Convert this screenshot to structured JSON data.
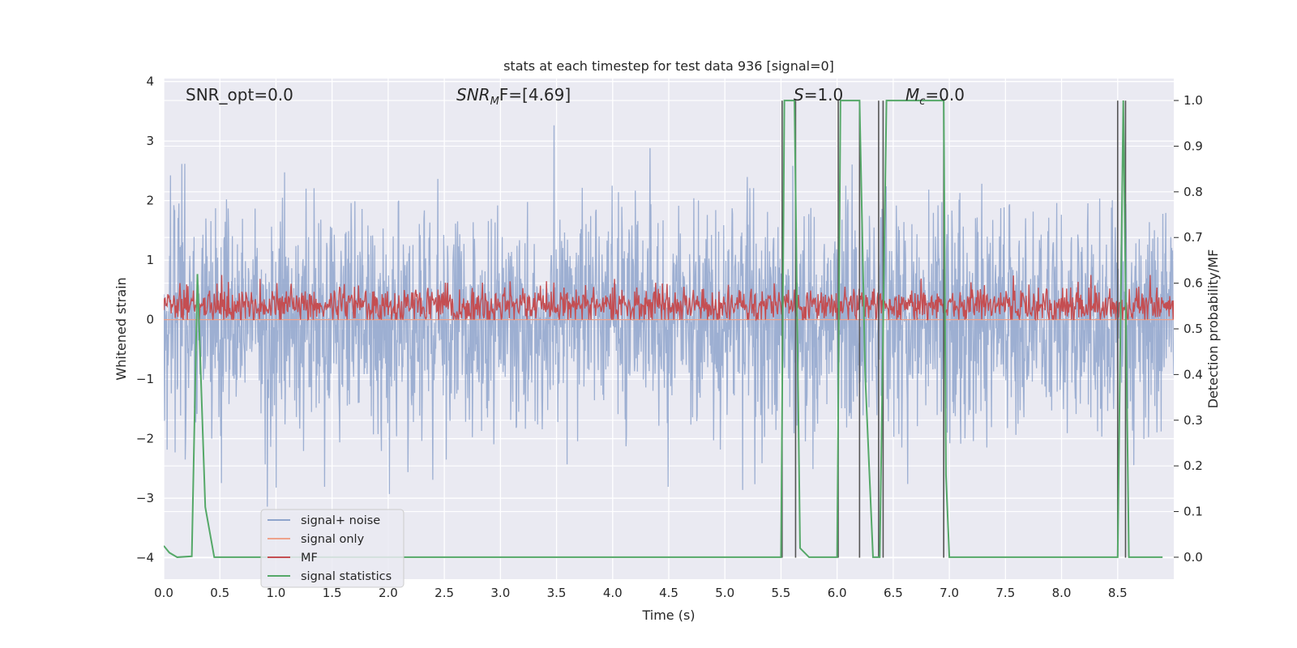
{
  "chart_data": {
    "type": "line",
    "title": "stats at each timestep for test data 936 [signal=0]",
    "xlabel": "Time (s)",
    "ylabel_left": "Whitened strain",
    "ylabel_right": "Detection probability/MF",
    "xlim": [
      0.0,
      9.0
    ],
    "ylim_left": [
      -4.36,
      4.05
    ],
    "ylim_right": [
      -0.048,
      1.048
    ],
    "x_ticks": [
      "0.0",
      "0.5",
      "1.0",
      "1.5",
      "2.0",
      "2.5",
      "3.0",
      "3.5",
      "4.0",
      "4.5",
      "5.0",
      "5.5",
      "6.0",
      "6.5",
      "7.0",
      "7.5",
      "8.0",
      "8.5"
    ],
    "x_tick_values": [
      0.0,
      0.5,
      1.0,
      1.5,
      2.0,
      2.5,
      3.0,
      3.5,
      4.0,
      4.5,
      5.0,
      5.5,
      6.0,
      6.5,
      7.0,
      7.5,
      8.0,
      8.5
    ],
    "y_ticks_left": [
      "−4",
      "−3",
      "−2",
      "−1",
      "0",
      "1",
      "2",
      "3",
      "4"
    ],
    "y_tick_values_left": [
      -4,
      -3,
      -2,
      -1,
      0,
      1,
      2,
      3,
      4
    ],
    "y_ticks_right": [
      "0.0",
      "0.1",
      "0.2",
      "0.3",
      "0.4",
      "0.5",
      "0.6",
      "0.7",
      "0.8",
      "0.9",
      "1.0"
    ],
    "y_tick_values_right": [
      0.0,
      0.1,
      0.2,
      0.3,
      0.4,
      0.5,
      0.6,
      0.7,
      0.8,
      0.9,
      1.0
    ],
    "grid": true,
    "legend_position": "lower-left",
    "annotations": {
      "snr_opt": "SNR_opt=0.0",
      "snr_mf_main": "SNR",
      "snr_mf_sub": "M",
      "snr_mf_rest": "F=[4.69]",
      "s_main": "S",
      "s_rest": "=1.0",
      "mc_main": "M",
      "mc_sub": "c",
      "mc_rest": "=0.0"
    },
    "series": [
      {
        "name": "signal+ noise",
        "color": "#8fa5cc",
        "axis": "left",
        "style": "noise",
        "sigma": 0.95,
        "envelope_max": 3.5,
        "envelope_min": -4.1
      },
      {
        "name": "signal only",
        "color": "#eea28b",
        "axis": "left",
        "values_constant": 0.0
      },
      {
        "name": "MF",
        "color": "#c44e52",
        "axis": "left",
        "style": "noise",
        "mean": 0.25,
        "band": [
          0.0,
          0.75
        ]
      },
      {
        "name": "signal statistics",
        "color": "#55a868",
        "axis": "right",
        "x": [
          0.0,
          0.05,
          0.12,
          0.25,
          0.3,
          0.37,
          0.45,
          2.0,
          5.5,
          5.53,
          5.62,
          5.67,
          5.75,
          6.0,
          6.03,
          6.1,
          6.2,
          6.25,
          6.32,
          6.38,
          6.44,
          6.5,
          6.95,
          6.97,
          7.0,
          8.5,
          8.55,
          8.6,
          8.9
        ],
        "y": [
          0.025,
          0.01,
          0.0,
          0.002,
          0.62,
          0.11,
          0.0,
          0.0,
          0.0,
          1.0,
          1.0,
          0.02,
          0.0,
          0.0,
          1.0,
          1.0,
          1.0,
          0.4,
          0.0,
          0.0,
          1.0,
          1.0,
          1.0,
          0.18,
          0.0,
          0.0,
          1.0,
          0.0,
          0.0
        ]
      }
    ],
    "vertical_markers": {
      "color": "#555555",
      "x": [
        5.51,
        5.63,
        6.01,
        6.2,
        6.37,
        6.41,
        6.95,
        8.5,
        8.57
      ],
      "y_top_left": 3.68,
      "y_bottom_left": -4.0
    }
  }
}
